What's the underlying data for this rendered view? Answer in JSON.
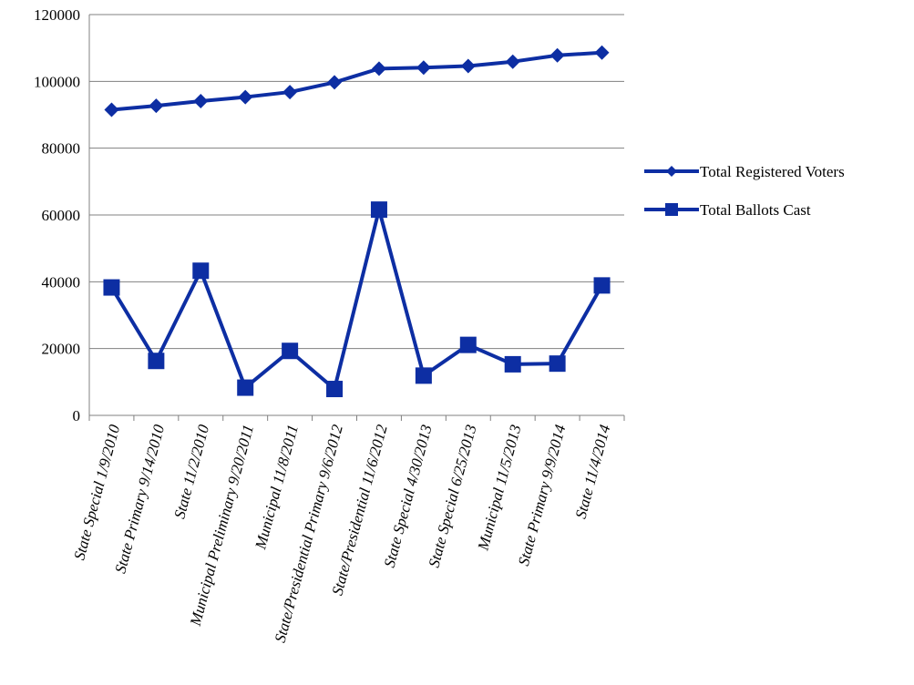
{
  "chart_data": {
    "type": "line",
    "categories": [
      "State Special 1/9/2010",
      "State Primary 9/14/2010",
      "State 11/2/2010",
      "Municipal Preliminary 9/20/2011",
      "Municipal 11/8/2011",
      "State/Presidential Primary 9/6/2012",
      "State/Presidential 11/6/2012",
      "State Special 4/30/2013",
      "State Special 6/25/2013",
      "Municipal 11/5/2013",
      "State Primary 9/9/2014",
      "State 11/4/2014"
    ],
    "series": [
      {
        "name": "Total Registered Voters",
        "marker": "diamond",
        "color": "#0d2ea3",
        "values": [
          91500,
          92700,
          94100,
          95300,
          96800,
          99700,
          103800,
          104100,
          104600,
          105900,
          107800,
          108600
        ]
      },
      {
        "name": "Total Ballots Cast",
        "marker": "square",
        "color": "#0d2ea3",
        "values": [
          38300,
          16300,
          43300,
          8300,
          19300,
          7900,
          61600,
          11900,
          21100,
          15300,
          15500,
          38900
        ]
      }
    ],
    "yticks": [
      "0",
      "20000",
      "40000",
      "60000",
      "80000",
      "100000",
      "120000"
    ],
    "ylim": [
      0,
      120000
    ],
    "grid": true,
    "legend_position": "right"
  }
}
